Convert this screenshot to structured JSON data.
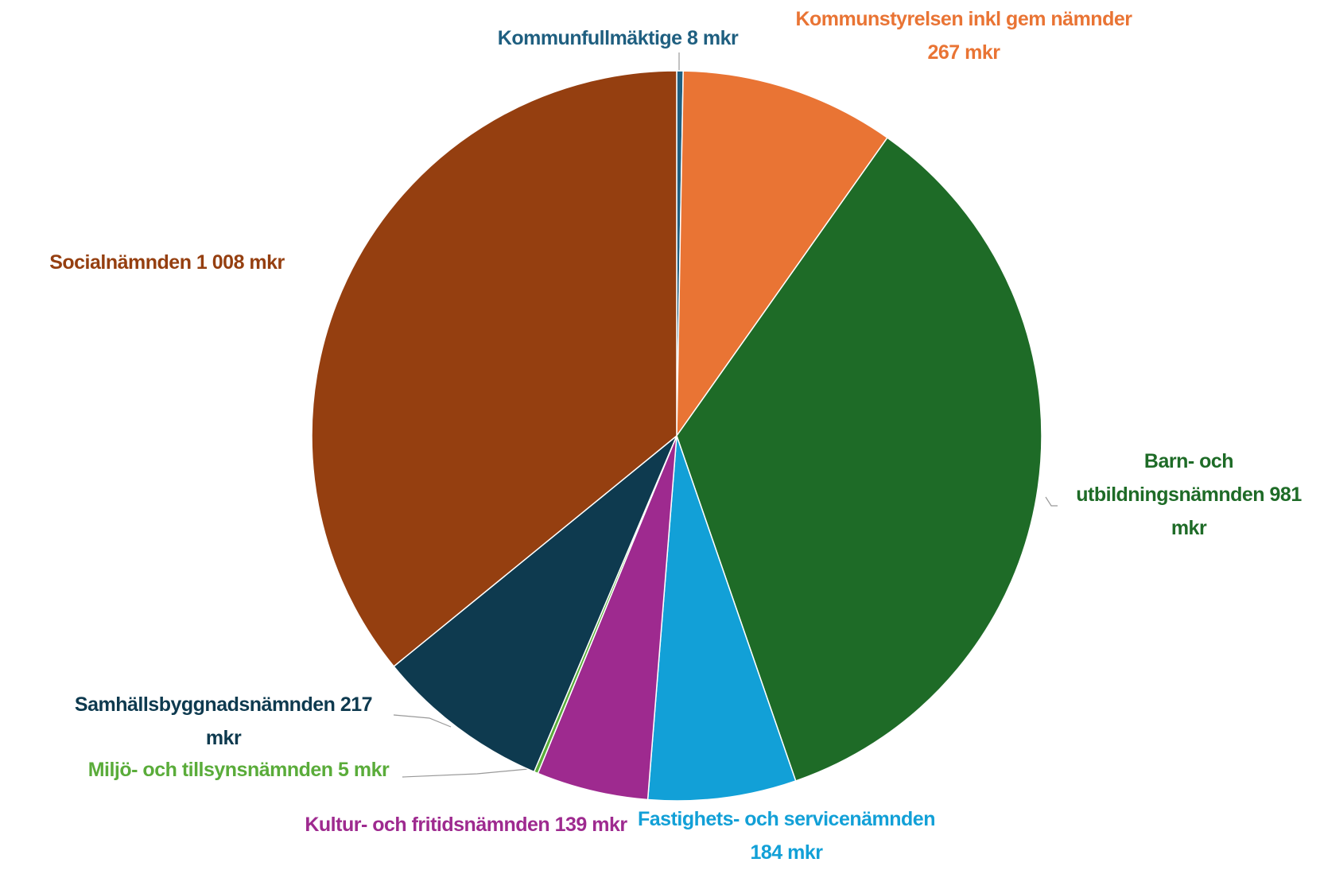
{
  "chart_data": {
    "type": "pie",
    "categories": [
      "Kommunfullmäktige",
      "Kommunstyrelsen inkl gem nämnder",
      "Barn- och utbildningsnämnden",
      "Fastighets- och servicenämnden",
      "Kultur- och fritidsnämnden",
      "Miljö- och tillsynsnämnden",
      "Samhällsbyggnadsnämnden",
      "Socialnämnden"
    ],
    "values": [
      8,
      267,
      981,
      184,
      139,
      5,
      217,
      1008
    ],
    "value_labels": [
      "8 mkr",
      "267 mkr",
      "981 mkr",
      "184 mkr",
      "139 mkr",
      "5 mkr",
      "217 mkr",
      "1 008 mkr"
    ],
    "colors": [
      "#1f5f80",
      "#e97434",
      "#1e6b27",
      "#12a0d7",
      "#9e2a8f",
      "#5aac3a",
      "#0e3a4f",
      "#953f10"
    ]
  }
}
